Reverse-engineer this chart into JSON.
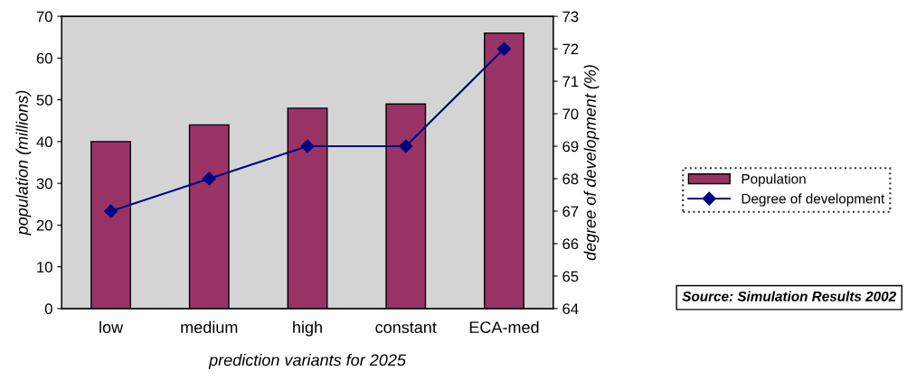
{
  "chart_data": {
    "type": "bar",
    "categories": [
      "low",
      "medium",
      "high",
      "constant",
      "ECA-med"
    ],
    "series": [
      {
        "name": "Population",
        "color": "#993366",
        "values": [
          40,
          44,
          48,
          49,
          66
        ]
      },
      {
        "name": "Degree of development",
        "type": "line",
        "axis": "y2",
        "color": "#000080",
        "values": [
          67,
          68,
          69,
          69,
          72
        ]
      }
    ],
    "xlabel": "prediction variants for 2025",
    "ylabel": "population (millions)",
    "y2label": "degree of development (%)",
    "ylim": [
      0,
      70
    ],
    "yticks": [
      0,
      10,
      20,
      30,
      40,
      50,
      60,
      70
    ],
    "y2lim": [
      64,
      73
    ],
    "y2ticks": [
      64,
      65,
      66,
      67,
      68,
      69,
      70,
      71,
      72,
      73
    ],
    "marker": "diamond",
    "line_style": "solid",
    "grid": false,
    "legend": "right",
    "annotations": [
      "Source: Simulation Results 2002"
    ]
  }
}
